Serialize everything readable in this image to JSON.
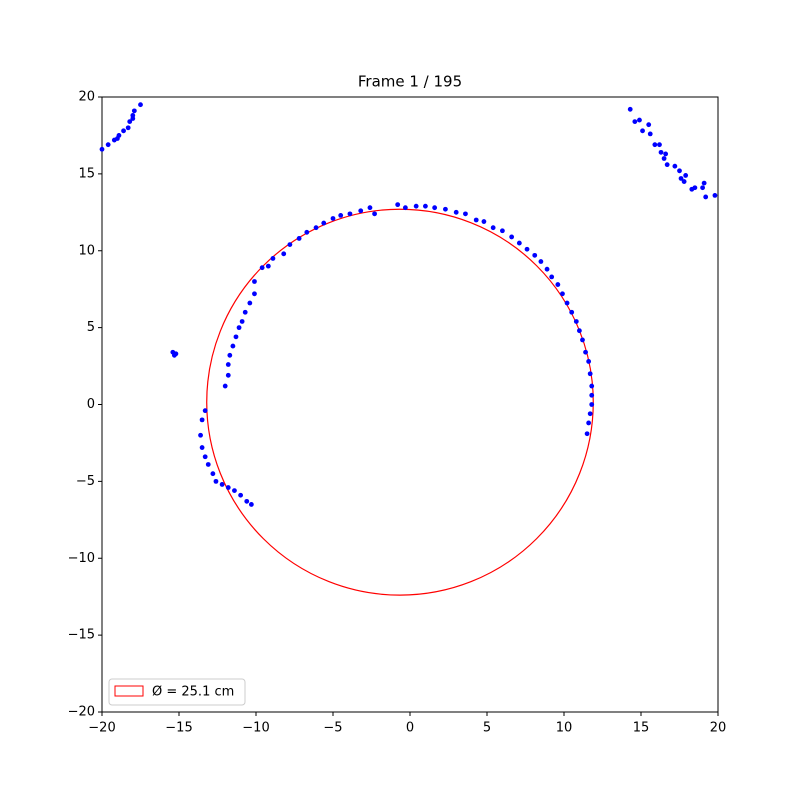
{
  "chart_data": {
    "type": "scatter",
    "title": "Frame 1 / 195",
    "xlim": [
      -20,
      20
    ],
    "ylim": [
      -20,
      20
    ],
    "xticks": [
      {
        "value": -20,
        "label": "−20"
      },
      {
        "value": -15,
        "label": "−15"
      },
      {
        "value": -10,
        "label": "−10"
      },
      {
        "value": -5,
        "label": "−5"
      },
      0,
      5,
      10,
      15,
      20
    ],
    "yticks": [
      {
        "value": -20,
        "label": "−20"
      },
      {
        "value": -15,
        "label": "−15"
      },
      {
        "value": -10,
        "label": "−10"
      },
      {
        "value": -5,
        "label": "−5"
      },
      0,
      5,
      10,
      15,
      20
    ],
    "series": [
      {
        "color": "#0000ff",
        "x": [
          -20,
          -19.6,
          -19.2,
          -18.9,
          -18.6,
          -18.3,
          -18.2,
          -18.0,
          -17.9,
          -17.5,
          -18.0,
          -19.0,
          14.3,
          14.6,
          14.9,
          15.1,
          15.5,
          15.6,
          15.9,
          16.2,
          16.3,
          16.6,
          16.5,
          16.7,
          17.2,
          17.5,
          17.6,
          17.9,
          17.8,
          18.3,
          18.5,
          19.0,
          19.1,
          19.2,
          19.8,
          -15.4,
          -15.2,
          -15.3,
          -10.1,
          -9.6,
          -9.2,
          -8.9,
          -8.2,
          -7.8,
          -7.2,
          -6.7,
          -6.1,
          -5.6,
          -5.0,
          -4.5,
          -3.9,
          -3.2,
          -2.6,
          -2.3,
          -0.8,
          -0.3,
          0.4,
          1.0,
          1.6,
          2.3,
          3.0,
          3.6,
          4.3,
          4.8,
          5.4,
          6.0,
          6.6,
          7.1,
          7.6,
          8.1,
          8.5,
          8.9,
          9.2,
          9.6,
          9.9,
          10.2,
          10.5,
          10.8,
          11.0,
          11.2,
          11.4,
          11.6,
          11.7,
          11.8,
          11.8,
          11.8,
          11.7,
          11.6,
          11.5,
          -10.1,
          -10.4,
          -10.7,
          -10.9,
          -11.1,
          -11.3,
          -11.5,
          -11.7,
          -11.8,
          -11.8,
          -12.0,
          -13.3,
          -13.5,
          -13.6,
          -13.5,
          -13.3,
          -13.1,
          -12.8,
          -12.6,
          -12.2,
          -11.8,
          -11.4,
          -11.0,
          -10.6,
          -10.3
        ],
        "values": [
          16.6,
          16.9,
          17.2,
          17.5,
          17.8,
          18.0,
          18.4,
          18.8,
          19.1,
          19.5,
          18.6,
          17.3,
          19.2,
          18.4,
          18.5,
          17.8,
          18.2,
          17.6,
          16.9,
          16.9,
          16.4,
          16.3,
          16.0,
          15.6,
          15.5,
          15.2,
          14.7,
          14.9,
          14.5,
          14.0,
          14.1,
          14.1,
          14.4,
          13.5,
          13.6,
          3.4,
          3.3,
          3.2,
          8.0,
          8.9,
          9.0,
          9.5,
          9.8,
          10.4,
          10.8,
          11.2,
          11.5,
          11.8,
          12.1,
          12.3,
          12.4,
          12.6,
          12.8,
          12.4,
          13.0,
          12.8,
          12.9,
          12.9,
          12.8,
          12.7,
          12.5,
          12.4,
          12.0,
          11.9,
          11.5,
          11.3,
          10.9,
          10.5,
          10.1,
          9.7,
          9.3,
          8.8,
          8.3,
          7.8,
          7.2,
          6.6,
          6.0,
          5.4,
          4.8,
          4.2,
          3.4,
          2.8,
          2.0,
          1.2,
          0.6,
          0.0,
          -0.6,
          -1.2,
          -1.9,
          7.2,
          6.6,
          6.0,
          5.4,
          5.0,
          4.4,
          3.8,
          3.2,
          2.6,
          1.9,
          1.2,
          -0.4,
          -1.0,
          -2.0,
          -2.8,
          -3.4,
          -3.9,
          -4.5,
          -5.0,
          -5.2,
          -5.4,
          -5.6,
          -5.9,
          -6.3,
          -6.5
        ]
      }
    ],
    "circle": {
      "cx": -0.65,
      "cy": 0.15,
      "diameter": 25.1,
      "color": "#ff0000",
      "label": "Ø = 25.1 cm"
    },
    "legend": "lower left"
  }
}
